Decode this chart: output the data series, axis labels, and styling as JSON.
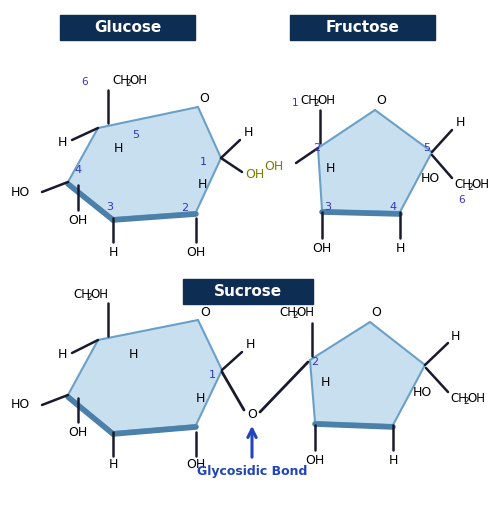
{
  "title_glucose": "Glucose",
  "title_fructose": "Fructose",
  "title_sucrose": "Sucrose",
  "title_bg": "#0d2d52",
  "title_fg": "white",
  "ring_fill": "#c8dff0",
  "ring_edge": "#6aa0c8",
  "ring_edge_thick": "#4a80aa",
  "bond_color": "#1a1a2e",
  "label_blue": "#3333cc",
  "label_olive": "#7b7b00",
  "arrow_color": "#2244bb",
  "glycosidic_label": "Glycosidic Bond",
  "background": "#ffffff"
}
